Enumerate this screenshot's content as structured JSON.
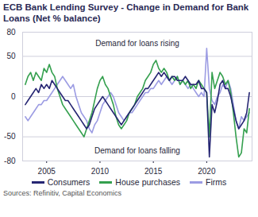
{
  "chart_data": {
    "type": "line",
    "title": "ECB Bank Lending Survey - Change in Demand for Bank Loans (Net % balance)",
    "source": "Sources: Refinitiv, Capital Economics",
    "annotations": [
      "Demand for loans rising",
      "Demand for loans falling"
    ],
    "x": [
      2003,
      2003.25,
      2003.5,
      2003.75,
      2004,
      2004.25,
      2004.5,
      2004.75,
      2005,
      2005.25,
      2005.5,
      2005.75,
      2006,
      2006.25,
      2006.5,
      2006.75,
      2007,
      2007.25,
      2007.5,
      2007.75,
      2008,
      2008.25,
      2008.5,
      2008.75,
      2009,
      2009.25,
      2009.5,
      2009.75,
      2010,
      2010.25,
      2010.5,
      2010.75,
      2011,
      2011.25,
      2011.5,
      2011.75,
      2012,
      2012.25,
      2012.5,
      2012.75,
      2013,
      2013.25,
      2013.5,
      2013.75,
      2014,
      2014.25,
      2014.5,
      2014.75,
      2015,
      2015.25,
      2015.5,
      2015.75,
      2016,
      2016.25,
      2016.5,
      2016.75,
      2017,
      2017.25,
      2017.5,
      2017.75,
      2018,
      2018.25,
      2018.5,
      2018.75,
      2019,
      2019.25,
      2019.5,
      2019.75,
      2020,
      2020.25,
      2020.5,
      2020.75,
      2021,
      2021.25,
      2021.5,
      2021.75,
      2022,
      2022.25,
      2022.5,
      2022.75,
      2023,
      2023.25,
      2023.5,
      2023.75,
      2024
    ],
    "series": [
      {
        "name": "Consumers",
        "color": "#262673",
        "values": [
          -10,
          -5,
          0,
          5,
          10,
          5,
          15,
          10,
          15,
          10,
          20,
          15,
          10,
          5,
          0,
          -5,
          -5,
          -10,
          -15,
          -20,
          -25,
          -30,
          -35,
          -40,
          -35,
          -25,
          -15,
          -10,
          -5,
          0,
          -5,
          -10,
          -15,
          -20,
          -25,
          -30,
          -35,
          -30,
          -25,
          -20,
          -15,
          -10,
          -5,
          0,
          5,
          10,
          10,
          15,
          20,
          25,
          30,
          25,
          30,
          25,
          20,
          25,
          25,
          20,
          20,
          20,
          25,
          20,
          15,
          15,
          15,
          20,
          10,
          10,
          5,
          -75,
          -10,
          -20,
          -5,
          15,
          20,
          10,
          10,
          0,
          -15,
          -30,
          -40,
          -35,
          -30,
          -20,
          5
        ]
      },
      {
        "name": "House purchases",
        "color": "#35a04f",
        "values": [
          15,
          25,
          30,
          20,
          30,
          25,
          20,
          35,
          30,
          40,
          30,
          25,
          10,
          0,
          -10,
          -15,
          -20,
          -25,
          -30,
          -35,
          -40,
          -45,
          -50,
          -40,
          -30,
          -20,
          -5,
          10,
          20,
          25,
          15,
          10,
          0,
          -10,
          -25,
          -35,
          -40,
          -35,
          -30,
          -20,
          -15,
          -10,
          0,
          5,
          10,
          20,
          25,
          30,
          40,
          45,
          35,
          30,
          35,
          30,
          20,
          25,
          20,
          25,
          15,
          20,
          15,
          20,
          10,
          15,
          10,
          20,
          15,
          10,
          5,
          -50,
          30,
          10,
          20,
          30,
          25,
          15,
          20,
          5,
          -20,
          -50,
          -75,
          -70,
          -40,
          -45,
          -15
        ]
      },
      {
        "name": "Firms",
        "color": "#9c9ce3",
        "values": [
          -25,
          -30,
          -25,
          -20,
          -15,
          -10,
          -10,
          -5,
          -5,
          0,
          5,
          10,
          15,
          20,
          25,
          20,
          15,
          10,
          15,
          0,
          -10,
          -20,
          -25,
          -30,
          -40,
          -45,
          -35,
          -30,
          -20,
          -10,
          -5,
          0,
          5,
          0,
          -10,
          -20,
          -25,
          -30,
          -25,
          -20,
          -20,
          -15,
          -10,
          -5,
          0,
          5,
          5,
          10,
          10,
          15,
          20,
          15,
          20,
          25,
          20,
          15,
          20,
          25,
          15,
          20,
          15,
          10,
          15,
          10,
          5,
          0,
          5,
          0,
          60,
          10,
          -5,
          -10,
          0,
          5,
          15,
          10,
          20,
          10,
          -10,
          -30,
          -40,
          -25,
          -30,
          -25,
          -20
        ]
      }
    ],
    "xlim": [
      2002.75,
      2024.25
    ],
    "xticks": [
      2005,
      2010,
      2015,
      2020
    ],
    "ylim": [
      -80,
      80
    ],
    "yticks": [
      -80,
      -50,
      0,
      50,
      80
    ],
    "grid": true,
    "legend": "bottom"
  }
}
